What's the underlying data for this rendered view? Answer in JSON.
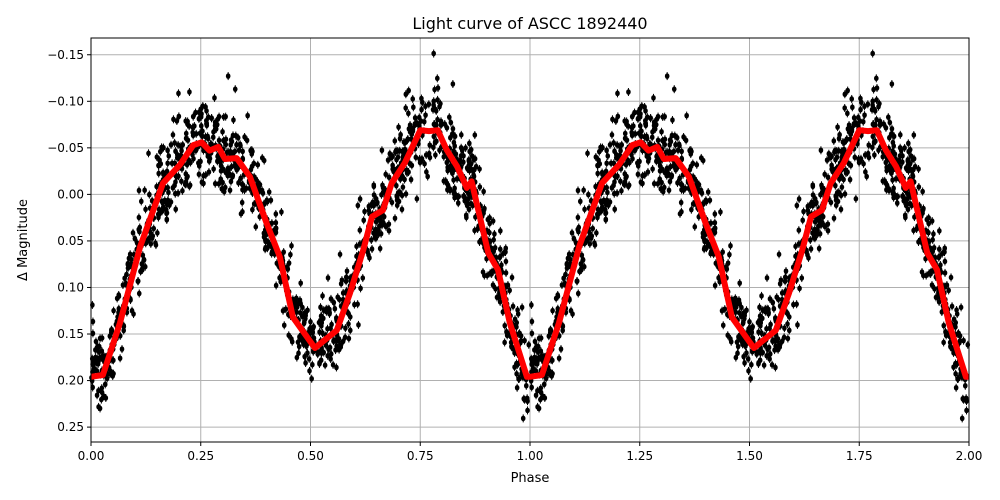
{
  "chart_data": {
    "type": "scatter",
    "title": "Light curve of ASCC 1892440",
    "xlabel": "Phase",
    "ylabel": "Δ Magnitude",
    "xlim": [
      0,
      2
    ],
    "ylim": [
      -0.168,
      0.266
    ],
    "y_inverted": true,
    "grid": true,
    "x_ticks": [
      "0.00",
      "0.25",
      "0.50",
      "0.75",
      "1.00",
      "1.25",
      "1.50",
      "1.75",
      "2.00"
    ],
    "x_tick_values": [
      0,
      0.25,
      0.5,
      0.75,
      1,
      1.25,
      1.5,
      1.75,
      2
    ],
    "y_ticks": [
      "−0.15",
      "−0.10",
      "−0.05",
      "0.00",
      "0.05",
      "0.10",
      "0.15",
      "0.20",
      "0.25"
    ],
    "y_tick_values": [
      -0.15,
      -0.1,
      -0.05,
      0,
      0.05,
      0.1,
      0.15,
      0.2,
      0.25
    ],
    "series": [
      {
        "kind": "scatter-errorbar",
        "color": "#000000",
        "phase_period_repeat": [
          0,
          1
        ]
      },
      {
        "kind": "binned-line",
        "color": "#ff0000",
        "x": [
          0,
          0.027,
          0.066,
          0.112,
          0.164,
          0.203,
          0.233,
          0.252,
          0.27,
          0.29,
          0.305,
          0.332,
          0.362,
          0.4,
          0.43,
          0.46,
          0.51,
          0.56,
          0.59,
          0.62,
          0.64,
          0.665,
          0.685,
          0.715,
          0.75,
          0.77,
          0.79,
          0.81,
          0.834,
          0.856,
          0.867,
          0.905,
          0.927,
          0.954,
          0.993,
          1.0
        ],
        "y": [
          0.196,
          0.194,
          0.138,
          0.056,
          -0.012,
          -0.032,
          -0.053,
          -0.056,
          -0.047,
          -0.051,
          -0.038,
          -0.039,
          -0.019,
          0.031,
          0.067,
          0.132,
          0.165,
          0.146,
          0.106,
          0.06,
          0.024,
          0.017,
          -0.012,
          -0.034,
          -0.069,
          -0.068,
          -0.069,
          -0.048,
          -0.03,
          -0.007,
          -0.014,
          0.063,
          0.081,
          0.138,
          0.196,
          0.196
        ]
      }
    ]
  }
}
